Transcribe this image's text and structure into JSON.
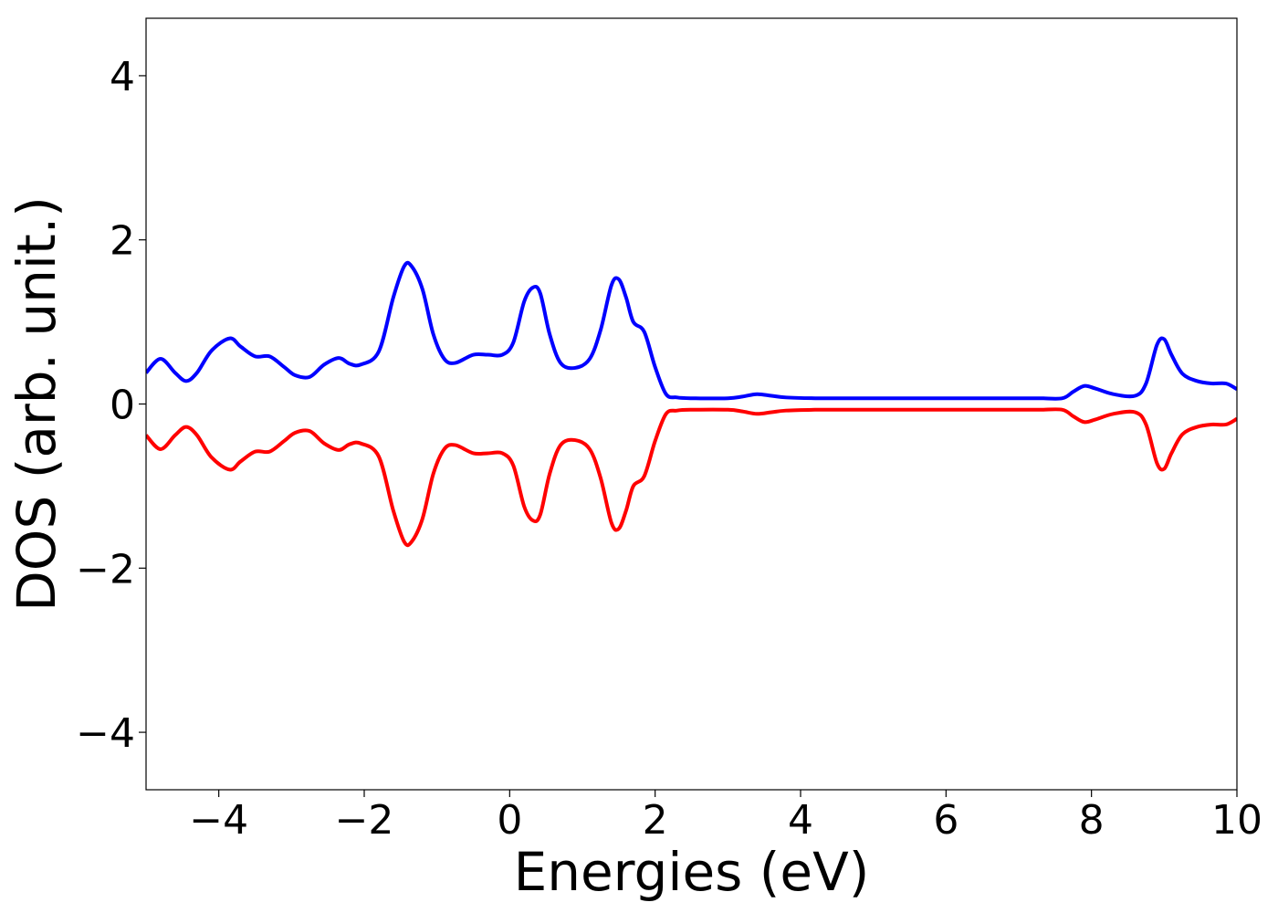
{
  "chart_data": {
    "type": "line",
    "title": "",
    "xlabel": "Energies (eV)",
    "ylabel": "DOS (arb. unit.)",
    "xlim": [
      -5,
      10
    ],
    "ylim": [
      -4.7,
      4.7
    ],
    "xticks": [
      -4,
      -2,
      0,
      2,
      4,
      6,
      8,
      10
    ],
    "xtick_labels": [
      "−4",
      "−2",
      "0",
      "2",
      "4",
      "6",
      "8",
      "10"
    ],
    "yticks": [
      -4,
      -2,
      0,
      2,
      4
    ],
    "ytick_labels": [
      "−4",
      "−2",
      "0",
      "2",
      "4"
    ],
    "grid": false,
    "legend": null,
    "colors": {
      "up": "#0000ff",
      "down": "#ff0000"
    },
    "series": [
      {
        "color": "#0000ff",
        "x": [
          -5.0,
          -4.8,
          -4.6,
          -4.45,
          -4.3,
          -4.1,
          -3.85,
          -3.7,
          -3.5,
          -3.3,
          -3.1,
          -2.95,
          -2.75,
          -2.55,
          -2.35,
          -2.2,
          -2.05,
          -1.8,
          -1.6,
          -1.45,
          -1.35,
          -1.2,
          -1.05,
          -0.9,
          -0.75,
          -0.5,
          -0.3,
          -0.1,
          0.05,
          0.2,
          0.32,
          0.42,
          0.55,
          0.7,
          0.9,
          1.1,
          1.25,
          1.4,
          1.5,
          1.6,
          1.7,
          1.85,
          2.0,
          2.15,
          2.3,
          2.5,
          3.0,
          3.2,
          3.4,
          3.6,
          3.8,
          4.2,
          4.6,
          5.0,
          5.4,
          5.8,
          6.2,
          6.6,
          7.0,
          7.3,
          7.6,
          7.75,
          7.9,
          8.05,
          8.3,
          8.6,
          8.75,
          8.9,
          9.0,
          9.1,
          9.25,
          9.45,
          9.65,
          9.85,
          10.0
        ],
        "y": [
          0.38,
          0.55,
          0.38,
          0.28,
          0.38,
          0.65,
          0.8,
          0.7,
          0.58,
          0.58,
          0.45,
          0.35,
          0.33,
          0.48,
          0.56,
          0.49,
          0.48,
          0.64,
          1.3,
          1.68,
          1.68,
          1.4,
          0.85,
          0.55,
          0.5,
          0.6,
          0.6,
          0.6,
          0.75,
          1.25,
          1.42,
          1.35,
          0.85,
          0.5,
          0.44,
          0.55,
          0.9,
          1.45,
          1.52,
          1.3,
          1.0,
          0.88,
          0.45,
          0.12,
          0.08,
          0.07,
          0.07,
          0.09,
          0.12,
          0.1,
          0.08,
          0.07,
          0.07,
          0.07,
          0.07,
          0.07,
          0.07,
          0.07,
          0.07,
          0.07,
          0.07,
          0.15,
          0.22,
          0.19,
          0.12,
          0.1,
          0.25,
          0.72,
          0.79,
          0.6,
          0.37,
          0.28,
          0.25,
          0.25,
          0.18
        ]
      },
      {
        "color": "#ff0000",
        "x": [
          -5.0,
          -4.8,
          -4.6,
          -4.45,
          -4.3,
          -4.1,
          -3.85,
          -3.7,
          -3.5,
          -3.3,
          -3.1,
          -2.95,
          -2.75,
          -2.55,
          -2.35,
          -2.2,
          -2.05,
          -1.8,
          -1.6,
          -1.45,
          -1.35,
          -1.2,
          -1.05,
          -0.9,
          -0.75,
          -0.5,
          -0.3,
          -0.1,
          0.05,
          0.2,
          0.32,
          0.42,
          0.55,
          0.7,
          0.9,
          1.1,
          1.25,
          1.4,
          1.5,
          1.6,
          1.7,
          1.85,
          2.0,
          2.15,
          2.3,
          2.5,
          3.0,
          3.2,
          3.4,
          3.6,
          3.8,
          4.2,
          4.6,
          5.0,
          5.4,
          5.8,
          6.2,
          6.6,
          7.0,
          7.3,
          7.6,
          7.75,
          7.9,
          8.05,
          8.3,
          8.6,
          8.75,
          8.9,
          9.0,
          9.1,
          9.25,
          9.45,
          9.65,
          9.85,
          10.0
        ],
        "y": [
          -0.38,
          -0.55,
          -0.38,
          -0.28,
          -0.38,
          -0.65,
          -0.8,
          -0.7,
          -0.58,
          -0.58,
          -0.45,
          -0.35,
          -0.33,
          -0.48,
          -0.56,
          -0.49,
          -0.48,
          -0.64,
          -1.3,
          -1.68,
          -1.68,
          -1.4,
          -0.85,
          -0.55,
          -0.5,
          -0.6,
          -0.6,
          -0.6,
          -0.75,
          -1.25,
          -1.42,
          -1.35,
          -0.85,
          -0.5,
          -0.44,
          -0.55,
          -0.9,
          -1.45,
          -1.52,
          -1.3,
          -1.0,
          -0.88,
          -0.45,
          -0.12,
          -0.08,
          -0.07,
          -0.07,
          -0.09,
          -0.12,
          -0.1,
          -0.08,
          -0.07,
          -0.07,
          -0.07,
          -0.07,
          -0.07,
          -0.07,
          -0.07,
          -0.07,
          -0.07,
          -0.07,
          -0.15,
          -0.22,
          -0.19,
          -0.12,
          -0.1,
          -0.25,
          -0.72,
          -0.79,
          -0.6,
          -0.37,
          -0.28,
          -0.25,
          -0.25,
          -0.18
        ]
      }
    ]
  }
}
